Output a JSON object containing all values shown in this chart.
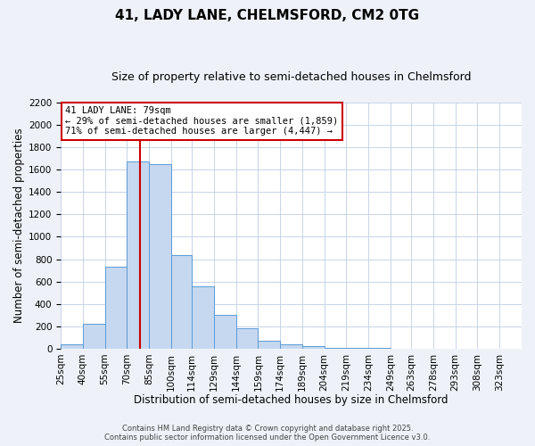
{
  "title": "41, LADY LANE, CHELMSFORD, CM2 0TG",
  "subtitle": "Size of property relative to semi-detached houses in Chelmsford",
  "xlabel": "Distribution of semi-detached houses by size in Chelmsford",
  "ylabel": "Number of semi-detached properties",
  "bin_labels": [
    "25sqm",
    "40sqm",
    "55sqm",
    "70sqm",
    "85sqm",
    "100sqm",
    "114sqm",
    "129sqm",
    "144sqm",
    "159sqm",
    "174sqm",
    "189sqm",
    "204sqm",
    "219sqm",
    "234sqm",
    "249sqm",
    "263sqm",
    "278sqm",
    "293sqm",
    "308sqm",
    "323sqm"
  ],
  "bin_edges": [
    25,
    40,
    55,
    70,
    85,
    100,
    114,
    129,
    144,
    159,
    174,
    189,
    204,
    219,
    234,
    249,
    263,
    278,
    293,
    308,
    323
  ],
  "bar_heights": [
    40,
    220,
    730,
    1670,
    1650,
    840,
    560,
    300,
    180,
    70,
    35,
    20,
    10,
    5,
    3,
    2,
    1,
    0,
    0,
    0
  ],
  "bar_color": "#c5d8f0",
  "bar_edge_color": "#5b9bd5",
  "property_line_x": 79,
  "property_label": "41 LADY LANE: 79sqm",
  "annotation_line1": "← 29% of semi-detached houses are smaller (1,859)",
  "annotation_line2": "71% of semi-detached houses are larger (4,447) →",
  "annotation_box_color": "#ffffff",
  "annotation_border_color": "#cc0000",
  "vline_color": "#cc0000",
  "ylim": [
    0,
    2200
  ],
  "yticks": [
    0,
    200,
    400,
    600,
    800,
    1000,
    1200,
    1400,
    1600,
    1800,
    2000,
    2200
  ],
  "footer_line1": "Contains HM Land Registry data © Crown copyright and database right 2025.",
  "footer_line2": "Contains public sector information licensed under the Open Government Licence v3.0.",
  "bg_color": "#eef2f8",
  "plot_bg_color": "#ffffff",
  "grid_color": "#c8d4e8",
  "title_fontsize": 11,
  "subtitle_fontsize": 9,
  "axis_label_fontsize": 8.5,
  "tick_fontsize": 7.5,
  "footer_fontsize": 6
}
